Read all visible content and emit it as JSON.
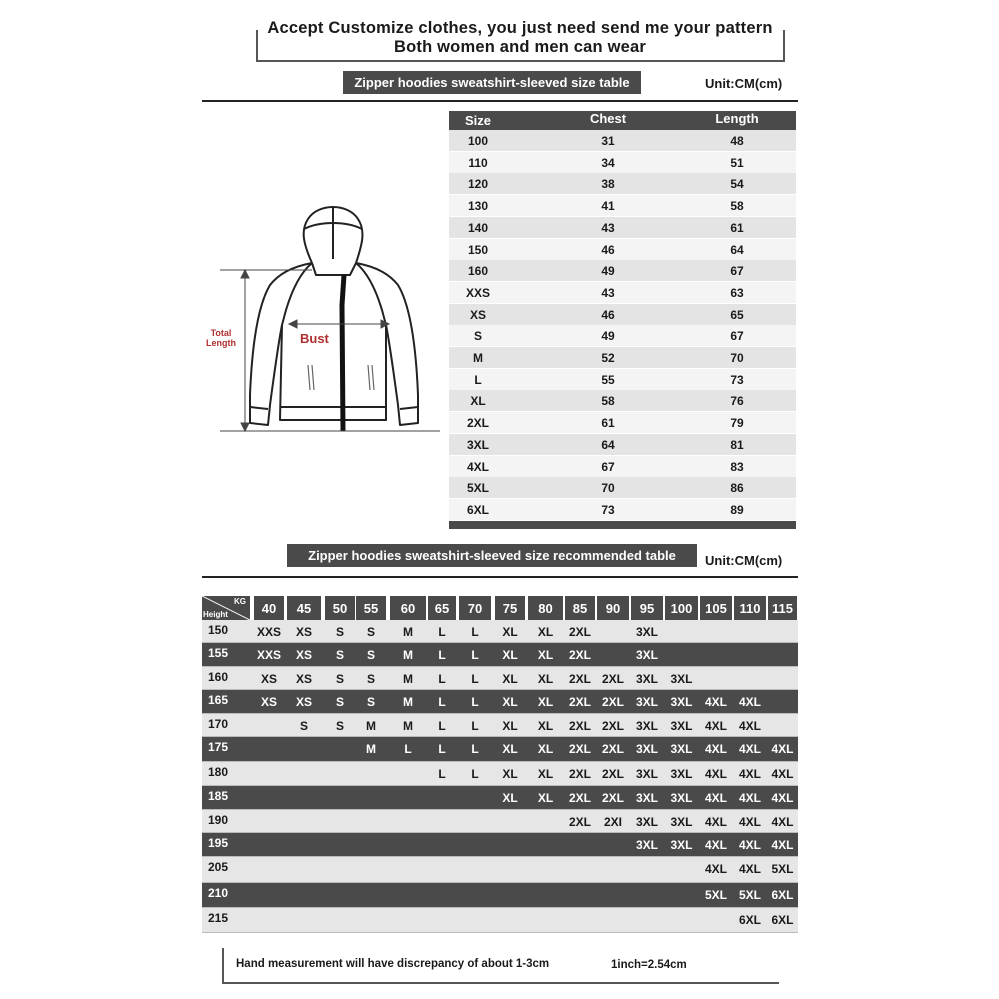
{
  "header": {
    "line1": "Accept Customize clothes, you just need send me your pattern",
    "line2": "Both women and men can wear"
  },
  "size_table": {
    "label": "Zipper hoodies sweatshirt-sleeved size  table",
    "unit": "Unit:CM(cm)",
    "columns": [
      "Size",
      "Chest",
      "Length"
    ],
    "rows": [
      [
        "100",
        "31",
        "48"
      ],
      [
        "110",
        "34",
        "51"
      ],
      [
        "120",
        "38",
        "54"
      ],
      [
        "130",
        "41",
        "58"
      ],
      [
        "140",
        "43",
        "61"
      ],
      [
        "150",
        "46",
        "64"
      ],
      [
        "160",
        "49",
        "67"
      ],
      [
        "XXS",
        "43",
        "63"
      ],
      [
        "XS",
        "46",
        "65"
      ],
      [
        "S",
        "49",
        "67"
      ],
      [
        "M",
        "52",
        "70"
      ],
      [
        "L",
        "55",
        "73"
      ],
      [
        "XL",
        "58",
        "76"
      ],
      [
        "2XL",
        "61",
        "79"
      ],
      [
        "3XL",
        "64",
        "81"
      ],
      [
        "4XL",
        "67",
        "83"
      ],
      [
        "5XL",
        "70",
        "86"
      ],
      [
        "6XL",
        "73",
        "89"
      ]
    ]
  },
  "diagram": {
    "total_length": "Total Length",
    "bust": "Bust",
    "label_color": "#b03030"
  },
  "recommended_table": {
    "label": "Zipper hoodies sweatshirt-sleeved size recommended table",
    "unit": "Unit:CM(cm)",
    "corner_kg": "KG",
    "corner_height": "Height",
    "kg": [
      "40",
      "45",
      "50",
      "55",
      "60",
      "65",
      "70",
      "75",
      "80",
      "85",
      "90",
      "95",
      "100",
      "105",
      "110",
      "115"
    ],
    "rows": [
      {
        "height": "150",
        "sizes": [
          "XXS",
          "XS",
          "S",
          "S",
          "M",
          "L",
          "L",
          "XL",
          "XL",
          "2XL",
          "",
          "3XL",
          "",
          "",
          "",
          ""
        ]
      },
      {
        "height": "155",
        "sizes": [
          "XXS",
          "XS",
          "S",
          "S",
          "M",
          "L",
          "L",
          "XL",
          "XL",
          "2XL",
          "",
          "3XL",
          "",
          "",
          "",
          ""
        ]
      },
      {
        "height": "160",
        "sizes": [
          "XS",
          "XS",
          "S",
          "S",
          "M",
          "L",
          "L",
          "XL",
          "XL",
          "2XL",
          "2XL",
          "3XL",
          "3XL",
          "",
          "",
          ""
        ]
      },
      {
        "height": "165",
        "sizes": [
          "XS",
          "XS",
          "S",
          "S",
          "M",
          "L",
          "L",
          "XL",
          "XL",
          "2XL",
          "2XL",
          "3XL",
          "3XL",
          "4XL",
          "4XL",
          ""
        ]
      },
      {
        "height": "170",
        "sizes": [
          "",
          "S",
          "S",
          "M",
          "M",
          "L",
          "L",
          "XL",
          "XL",
          "2XL",
          "2XL",
          "3XL",
          "3XL",
          "4XL",
          "4XL",
          ""
        ]
      },
      {
        "height": "175",
        "sizes": [
          "",
          "",
          "",
          "M",
          "L",
          "L",
          "L",
          "XL",
          "XL",
          "2XL",
          "2XL",
          "3XL",
          "3XL",
          "4XL",
          "4XL",
          "4XL"
        ]
      },
      {
        "height": "180",
        "sizes": [
          "",
          "",
          "",
          "",
          "",
          "L",
          "L",
          "XL",
          "XL",
          "2XL",
          "2XL",
          "3XL",
          "3XL",
          "4XL",
          "4XL",
          "4XL"
        ]
      },
      {
        "height": "185",
        "sizes": [
          "",
          "",
          "",
          "",
          "",
          "",
          "",
          "XL",
          "XL",
          "2XL",
          "2XL",
          "3XL",
          "3XL",
          "4XL",
          "4XL",
          "4XL"
        ]
      },
      {
        "height": "190",
        "sizes": [
          "",
          "",
          "",
          "",
          "",
          "",
          "",
          "",
          "",
          "2XL",
          "2XI",
          "3XL",
          "3XL",
          "4XL",
          "4XL",
          "4XL"
        ]
      },
      {
        "height": "195",
        "sizes": [
          "",
          "",
          "",
          "",
          "",
          "",
          "",
          "",
          "",
          "",
          "",
          "3XL",
          "3XL",
          "4XL",
          "4XL",
          "4XL"
        ]
      },
      {
        "height": "205",
        "sizes": [
          "",
          "",
          "",
          "",
          "",
          "",
          "",
          "",
          "",
          "",
          "",
          "",
          "",
          "4XL",
          "4XL",
          "5XL"
        ]
      },
      {
        "height": "210",
        "sizes": [
          "",
          "",
          "",
          "",
          "",
          "",
          "",
          "",
          "",
          "",
          "",
          "",
          "",
          "5XL",
          "5XL",
          "6XL"
        ]
      },
      {
        "height": "215",
        "sizes": [
          "",
          "",
          "",
          "",
          "",
          "",
          "",
          "",
          "",
          "",
          "",
          "",
          "",
          "",
          "6XL",
          "6XL"
        ]
      }
    ]
  },
  "footer": {
    "note": "Hand measurement will have discrepancy of about  1-3cm",
    "conversion": "1inch=2.54cm"
  }
}
